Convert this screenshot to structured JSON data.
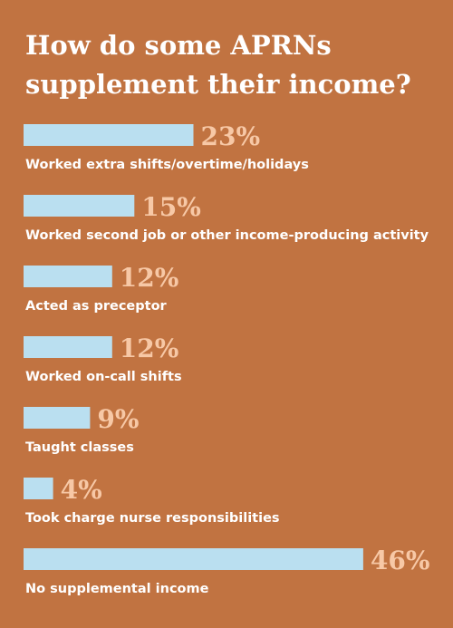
{
  "chart_data": {
    "type": "bar",
    "orientation": "horizontal",
    "title_lines": [
      "How do some APRNs",
      "supplement their income?"
    ],
    "categories": [
      "Worked extra shifts/overtime/holidays",
      "Worked second job or other income-producing activity",
      "Acted as preceptor",
      "Worked on-call shifts",
      "Taught classes",
      "Took charge nurse responsibilities",
      "No supplemental income"
    ],
    "values": [
      23,
      15,
      12,
      12,
      9,
      4,
      46
    ],
    "value_labels": [
      "23%",
      "15%",
      "12%",
      "12%",
      "9%",
      "4%",
      "46%"
    ],
    "value_unit": "%",
    "grid": false,
    "legend": "none"
  },
  "colors": {
    "background": "#C17341",
    "bar": "#BADFF0",
    "value_label": "#F7C8A6",
    "text": "#FFFFFF"
  }
}
